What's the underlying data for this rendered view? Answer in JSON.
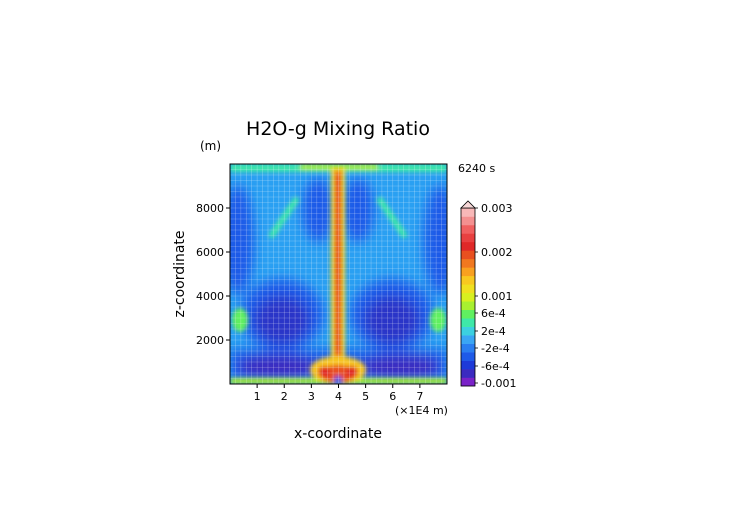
{
  "chart_data": {
    "type": "heatmap",
    "title": "H2O-g Mixing Ratio",
    "xlabel": "x-coordinate",
    "ylabel": "z-coordinate",
    "y_unit": "(m)",
    "x_unit": "(×1E4 m)",
    "time_label": "6240 s",
    "xlim": [
      0,
      8
    ],
    "ylim": [
      0,
      10000
    ],
    "x_ticks": [
      "1",
      "2",
      "3",
      "4",
      "5",
      "6",
      "7"
    ],
    "y_ticks": [
      "2000",
      "4000",
      "6000",
      "8000"
    ],
    "colorbar_labels": [
      "0.003",
      "0.002",
      "0.001",
      "6e-4",
      "2e-4",
      "-2e-4",
      "-6e-4",
      "-0.001"
    ],
    "colorbar_colors": [
      "#7a22c8",
      "#3b2ac0",
      "#1e3ad8",
      "#1e5ae8",
      "#2a7ef0",
      "#3aa6f4",
      "#3cd0e0",
      "#3ee8a8",
      "#60f060",
      "#a8f030",
      "#d8f020",
      "#f0e020",
      "#f8c820",
      "#f8a020",
      "#f07820",
      "#e85020",
      "#e02828",
      "#e84040",
      "#f06060",
      "#f49090",
      "#f8b8b8"
    ],
    "grid": true,
    "field_description_levels": "low negative anomalies in lower layer, strong positive plume along x=4"
  }
}
